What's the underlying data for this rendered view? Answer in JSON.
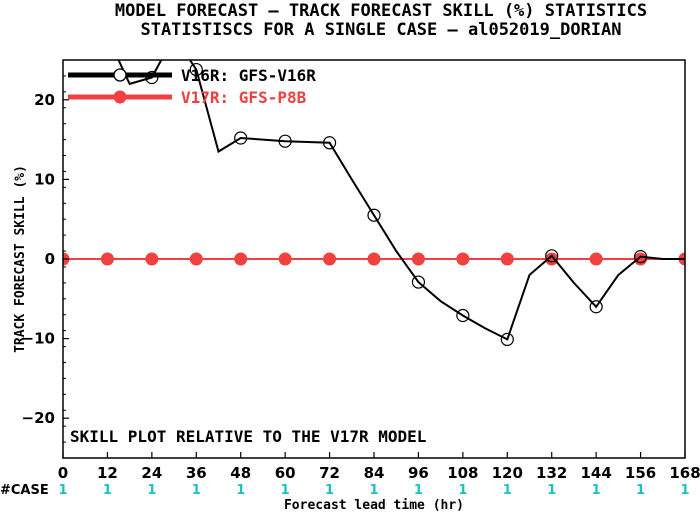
{
  "title_line1": "MODEL FORECAST – TRACK FORECAST SKILL (%) STATISTICS",
  "title_line2": "STATISTISCS FOR A SINGLE CASE – al052019_DORIAN",
  "note": "SKILL PLOT RELATIVE TO THE V17R MODEL",
  "case_label": "#CASE",
  "colors": {
    "v16r": "#000000",
    "v17r": "#f04040",
    "case": "#20c0c0",
    "zero_line": "#a00000"
  },
  "chart_data": {
    "type": "line",
    "title": "MODEL FORECAST – TRACK FORECAST SKILL (%) STATISTICS",
    "subtitle": "STATISTISCS FOR A SINGLE CASE – al052019_DORIAN",
    "xlabel": "Forecast lead time (hr)",
    "ylabel": "TRACK FORECAST SKILL (%)",
    "xlim": [
      0,
      168
    ],
    "ylim": [
      -25,
      25
    ],
    "xticks": [
      "0",
      "12",
      "24",
      "36",
      "48",
      "60",
      "72",
      "84",
      "96",
      "108",
      "120",
      "132",
      "144",
      "156",
      "168"
    ],
    "yticks": [
      "20",
      "10",
      "0",
      "−10",
      "−20"
    ],
    "legend_position": "top-left",
    "series": [
      {
        "name": "V16R: GFS-V16R",
        "line_x": [
          12,
          18,
          24,
          30,
          36,
          42,
          48,
          54,
          60,
          66,
          72,
          78,
          84,
          90,
          96,
          102,
          108,
          114,
          120,
          126,
          132,
          138,
          144,
          150,
          156,
          162,
          168
        ],
        "line_y": [
          28,
          22,
          22.8,
          28,
          23.8,
          13.5,
          15.2,
          15,
          14.8,
          14.7,
          14.6,
          10,
          5.5,
          1,
          -2.9,
          -5.3,
          -7.1,
          -8.7,
          -10.1,
          -2,
          0.4,
          -3,
          -6,
          -2,
          0.3,
          0,
          0
        ],
        "marker_x": [
          24,
          36,
          48,
          60,
          72,
          84,
          96,
          108,
          120,
          132,
          144,
          156
        ],
        "marker_y": [
          22.8,
          23.8,
          15.2,
          14.8,
          14.6,
          5.5,
          -2.9,
          -7.1,
          -10.1,
          0.4,
          -6,
          0.3
        ]
      },
      {
        "name": "V17R: GFS-P8B",
        "x": [
          0,
          12,
          24,
          36,
          48,
          60,
          72,
          84,
          96,
          108,
          120,
          132,
          144,
          156,
          168
        ],
        "y": [
          0,
          0,
          0,
          0,
          0,
          0,
          0,
          0,
          0,
          0,
          0,
          0,
          0,
          0,
          0
        ]
      }
    ],
    "cases": [
      "1",
      "1",
      "1",
      "1",
      "1",
      "1",
      "1",
      "1",
      "1",
      "1",
      "1",
      "1",
      "1",
      "1",
      "1"
    ]
  }
}
